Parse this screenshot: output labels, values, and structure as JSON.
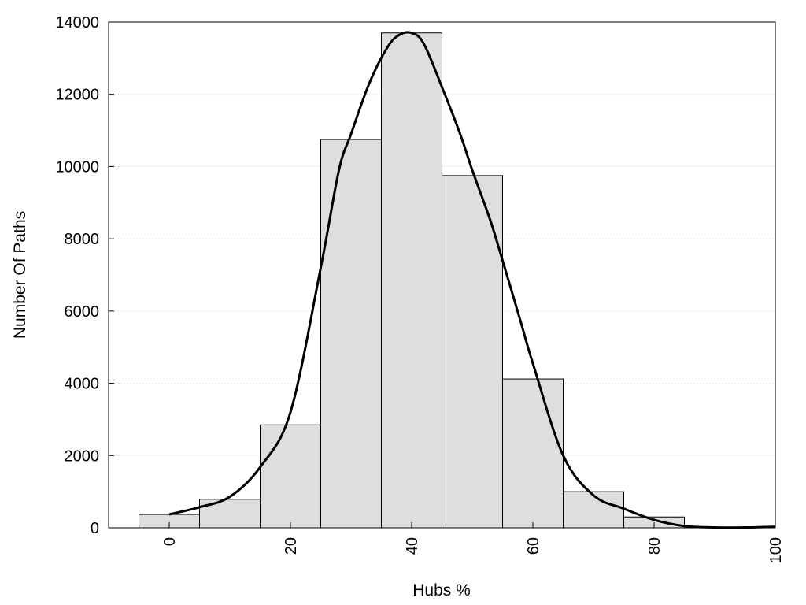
{
  "chart_data": {
    "type": "bar",
    "title": "",
    "xlabel": "Hubs %",
    "ylabel": "Number Of Paths",
    "xlim": [
      -10,
      100
    ],
    "ylim": [
      0,
      14000
    ],
    "x_ticks": [
      0,
      20,
      40,
      60,
      80,
      100
    ],
    "y_ticks": [
      0,
      2000,
      4000,
      6000,
      8000,
      10000,
      12000,
      14000
    ],
    "grid": "horizontal-dotted",
    "legend": "none",
    "bin_width": 10,
    "bins": [
      {
        "center": 0,
        "value": 370
      },
      {
        "center": 10,
        "value": 790
      },
      {
        "center": 20,
        "value": 2850
      },
      {
        "center": 30,
        "value": 10750
      },
      {
        "center": 40,
        "value": 13700
      },
      {
        "center": 50,
        "value": 9750
      },
      {
        "center": 60,
        "value": 4120
      },
      {
        "center": 70,
        "value": 1000
      },
      {
        "center": 80,
        "value": 300
      },
      {
        "center": 90,
        "value": 0
      },
      {
        "center": 100,
        "value": 0
      }
    ],
    "curve": {
      "x": [
        0,
        5,
        10,
        15,
        20,
        25,
        28,
        30,
        33,
        36,
        38,
        40,
        42,
        45,
        48,
        50,
        53,
        55,
        58,
        60,
        65,
        70,
        75,
        80,
        85,
        90,
        95,
        100
      ],
      "y": [
        370,
        570,
        860,
        1680,
        3200,
        7200,
        9900,
        10900,
        12300,
        13300,
        13650,
        13700,
        13400,
        12200,
        10900,
        9900,
        8500,
        7400,
        5700,
        4550,
        2000,
        900,
        530,
        220,
        50,
        10,
        10,
        30
      ]
    },
    "colors": {
      "bar_fill": "#dedede",
      "bar_stroke": "#000000",
      "curve": "#000000",
      "grid": "#c8c8c8"
    }
  }
}
